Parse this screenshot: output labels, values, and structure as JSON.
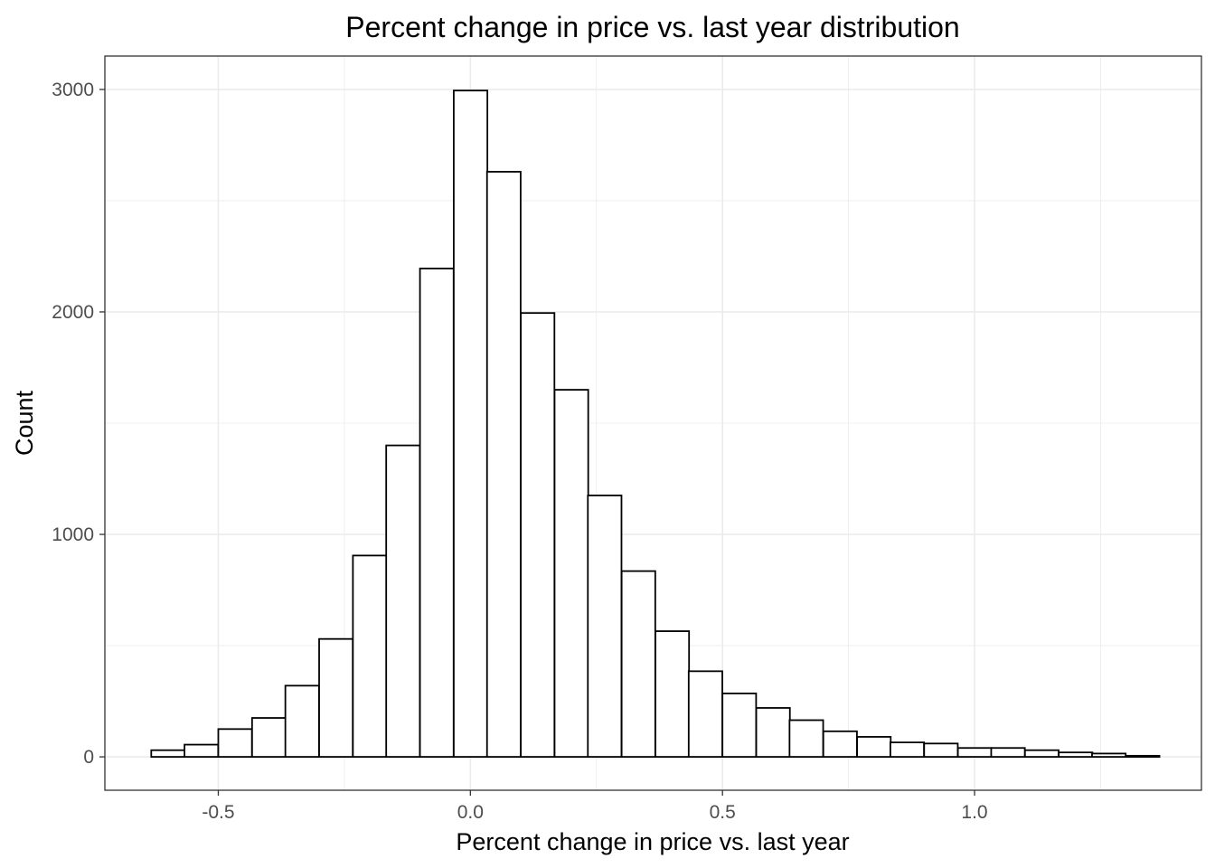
{
  "chart_data": {
    "type": "bar",
    "title": "Percent change in price vs. last year distribution",
    "xlabel": "Percent change in price vs. last year",
    "ylabel": "Count",
    "xlim": [
      -0.725,
      1.45
    ],
    "ylim": [
      -150,
      3150
    ],
    "x_ticks": [
      -0.5,
      0.0,
      0.5,
      1.0
    ],
    "x_tick_labels": [
      "-0.5",
      "0.0",
      "0.5",
      "1.0"
    ],
    "y_ticks": [
      0,
      1000,
      2000,
      3000
    ],
    "y_tick_labels": [
      "0",
      "1000",
      "2000",
      "3000"
    ],
    "grid": true,
    "bin_width": 0.0667,
    "bins_start": [
      -0.633,
      -0.567,
      -0.5,
      -0.433,
      -0.367,
      -0.3,
      -0.233,
      -0.167,
      -0.1,
      -0.033,
      0.033,
      0.1,
      0.167,
      0.233,
      0.3,
      0.367,
      0.433,
      0.5,
      0.567,
      0.633,
      0.7,
      0.767,
      0.833,
      0.9,
      0.967,
      1.033,
      1.1,
      1.167,
      1.233,
      1.3
    ],
    "counts": [
      30,
      55,
      125,
      175,
      320,
      530,
      905,
      1400,
      2195,
      2995,
      2630,
      1995,
      1650,
      1175,
      835,
      565,
      385,
      285,
      220,
      165,
      115,
      90,
      65,
      60,
      40,
      40,
      30,
      20,
      15,
      5
    ],
    "bar_fill": "#ffffff",
    "bar_stroke": "#000000",
    "grid_color": "#ebebeb",
    "panel_border": "#333333"
  }
}
